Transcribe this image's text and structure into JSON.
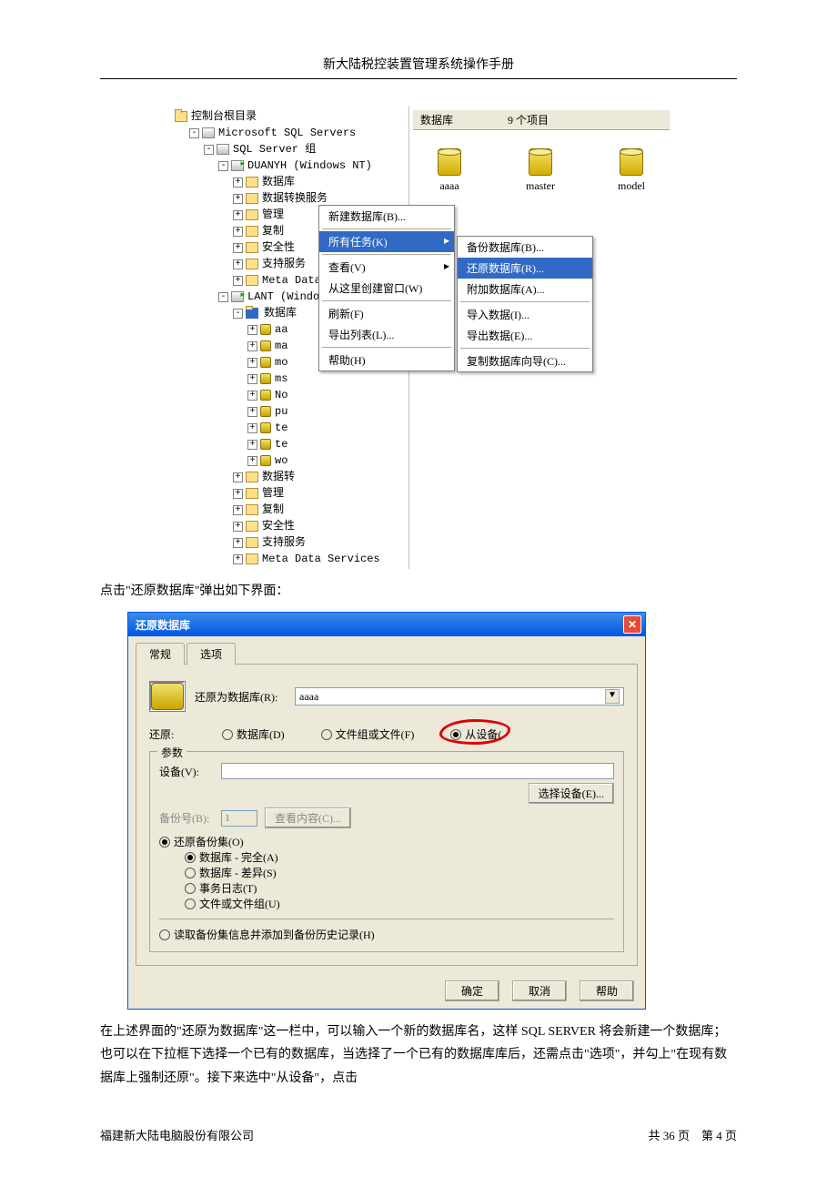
{
  "doc_title": "新大陆税控装置管理系统操作手册",
  "footer_left": "福建新大陆电脑股份有限公司",
  "footer_right": "共 36 页　第 4 页",
  "tree": {
    "root": "控制台根目录",
    "sqlservers": "Microsoft SQL Servers",
    "sqlgroup": "SQL Server 组",
    "srv1": "DUANYH  (Windows NT)",
    "srv1_items": [
      "数据库",
      "数据转换服务",
      "管理",
      "复制",
      "安全性",
      "支持服务",
      "Meta Data Services"
    ],
    "srv2": "LANT  (Windows NT)",
    "srv2_db": "数据库",
    "srv2_dbs": [
      "aa",
      "ma",
      "mo",
      "ms",
      "No",
      "pu",
      "te",
      "te",
      "wo"
    ],
    "srv2_items": [
      "数据转",
      "管理",
      "复制",
      "安全性",
      "支持服务",
      "Meta Data Services"
    ]
  },
  "right": {
    "hdr_db": "数据库",
    "hdr_count": "9 个项目",
    "items": [
      "aaaa",
      "master",
      "model"
    ]
  },
  "menu1": [
    {
      "label": "新建数据库(B)..."
    },
    {
      "sep": true
    },
    {
      "label": "所有任务(K)",
      "sel": true,
      "sub": true
    },
    {
      "sep": true
    },
    {
      "label": "查看(V)",
      "sub": true
    },
    {
      "label": "从这里创建窗口(W)"
    },
    {
      "sep": true
    },
    {
      "label": "刷新(F)"
    },
    {
      "label": "导出列表(L)..."
    },
    {
      "sep": true
    },
    {
      "label": "帮助(H)"
    }
  ],
  "menu2": [
    {
      "label": "备份数据库(B)..."
    },
    {
      "label": "还原数据库(R)...",
      "sel": true
    },
    {
      "label": "附加数据库(A)..."
    },
    {
      "sep": true
    },
    {
      "label": "导入数据(I)..."
    },
    {
      "label": "导出数据(E)..."
    },
    {
      "sep": true
    },
    {
      "label": "复制数据库向导(C)..."
    }
  ],
  "para1": "点击\"还原数据库\"弹出如下界面：",
  "dialog": {
    "title": "还原数据库",
    "tab1": "常规",
    "tab2": "选项",
    "restore_as_label": "还原为数据库(R):",
    "restore_as_value": "aaaa",
    "restore_label": "还原:",
    "r_db": "数据库(D)",
    "r_fg": "文件组或文件(F)",
    "r_dev": "从设备(",
    "fs_legend": "参数",
    "device_label": "设备(V):",
    "select_device": "选择设备(E)...",
    "backup_no": "备份号(B):",
    "backup_no_val": "1",
    "view_content": "查看内容(C)...",
    "rs_set": "还原备份集(O)",
    "rs_full": "数据库 - 完全(A)",
    "rs_diff": "数据库 - 差异(S)",
    "rs_log": "事务日志(T)",
    "rs_file": "文件或文件组(U)",
    "read_info": "读取备份集信息并添加到备份历史记录(H)",
    "ok": "确定",
    "cancel": "取消",
    "help": "帮助"
  },
  "para2": "在上述界面的\"还原为数据库\"这一栏中，可以输入一个新的数据库名，这样 SQL SERVER 将会新建一个数据库；也可以在下拉框下选择一个已有的数据库，当选择了一个已有的数据库库后，还需点击\"选项\"，并勾上\"在现有数据库上强制还原\"。接下来选中\"从设备\"，点击"
}
